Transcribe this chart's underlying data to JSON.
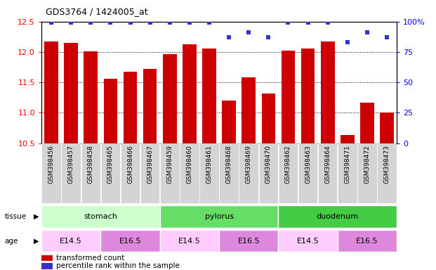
{
  "title": "GDS3764 / 1424005_at",
  "samples": [
    "GSM398456",
    "GSM398457",
    "GSM398458",
    "GSM398465",
    "GSM398466",
    "GSM398467",
    "GSM398459",
    "GSM398460",
    "GSM398461",
    "GSM398468",
    "GSM398469",
    "GSM398470",
    "GSM398462",
    "GSM398463",
    "GSM398464",
    "GSM398471",
    "GSM398472",
    "GSM398473"
  ],
  "bar_values": [
    12.17,
    12.15,
    12.01,
    11.56,
    11.68,
    11.72,
    11.97,
    12.13,
    12.06,
    11.2,
    11.58,
    11.32,
    12.02,
    12.06,
    12.17,
    10.63,
    11.17,
    11.0
  ],
  "dot_values": [
    99,
    99,
    99,
    99,
    99,
    99,
    99,
    99,
    99,
    87,
    91,
    87,
    99,
    99,
    99,
    83,
    91,
    87
  ],
  "ylim_left": [
    10.5,
    12.5
  ],
  "ylim_right": [
    0,
    100
  ],
  "bar_color": "#cc0000",
  "dot_color": "#3333cc",
  "tissue_groups": [
    {
      "label": "stomach",
      "start": 0,
      "end": 6,
      "color": "#ccffcc"
    },
    {
      "label": "pylorus",
      "start": 6,
      "end": 12,
      "color": "#66dd66"
    },
    {
      "label": "duodenum",
      "start": 12,
      "end": 18,
      "color": "#44cc44"
    }
  ],
  "age_groups": [
    {
      "label": "E14.5",
      "start": 0,
      "end": 3,
      "color": "#ffccff"
    },
    {
      "label": "E16.5",
      "start": 3,
      "end": 6,
      "color": "#dd88dd"
    },
    {
      "label": "E14.5",
      "start": 6,
      "end": 9,
      "color": "#ffccff"
    },
    {
      "label": "E16.5",
      "start": 9,
      "end": 12,
      "color": "#dd88dd"
    },
    {
      "label": "E14.5",
      "start": 12,
      "end": 15,
      "color": "#ffccff"
    },
    {
      "label": "E16.5",
      "start": 15,
      "end": 18,
      "color": "#dd88dd"
    }
  ],
  "legend_items": [
    {
      "label": "transformed count",
      "color": "#cc0000"
    },
    {
      "label": "percentile rank within the sample",
      "color": "#3333cc"
    }
  ],
  "left_yticks": [
    10.5,
    11.0,
    11.5,
    12.0,
    12.5
  ],
  "right_yticks": [
    0,
    25,
    50,
    75,
    100
  ],
  "right_ytick_labels": [
    "0",
    "25",
    "50",
    "75",
    "100%"
  ]
}
